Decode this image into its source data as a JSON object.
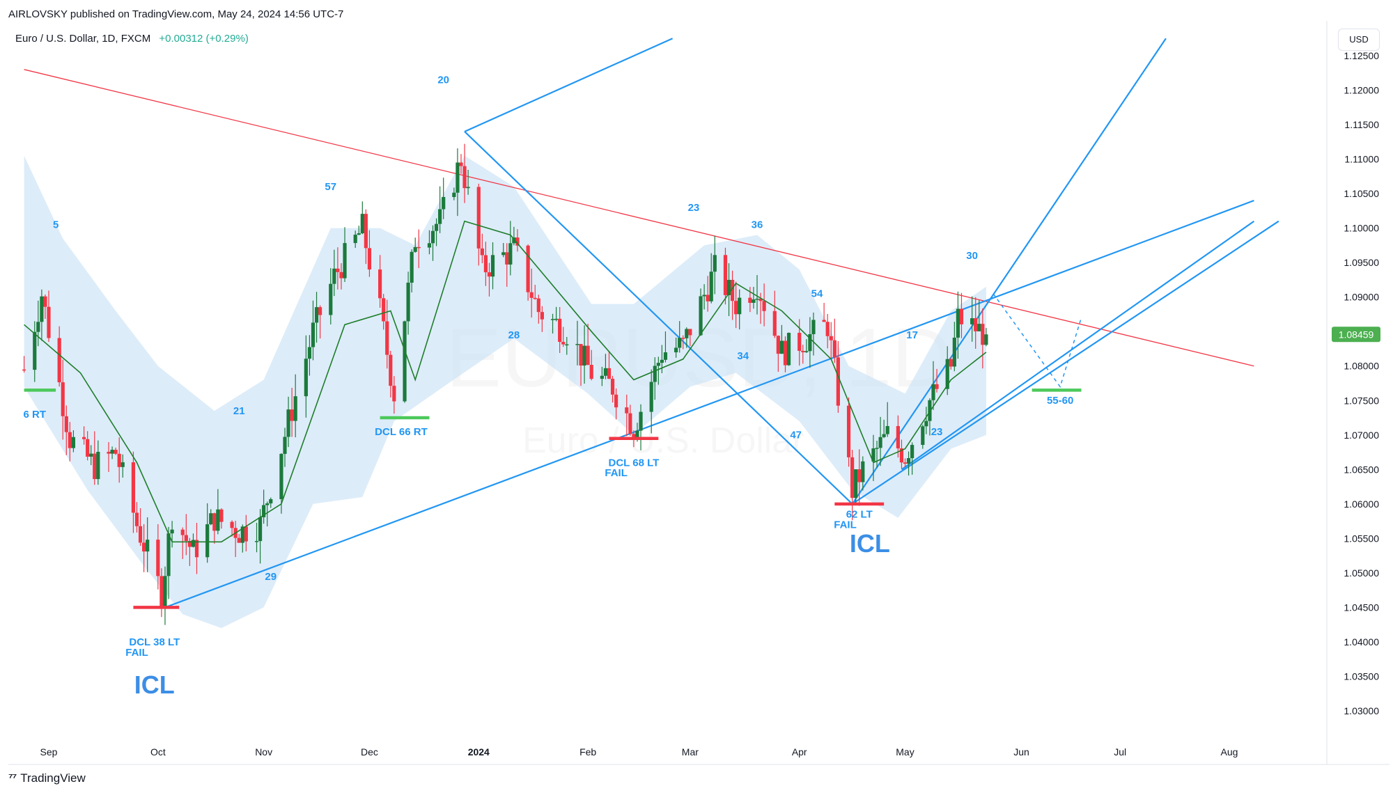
{
  "header": {
    "published_line": "AIRLOVSKY published on TradingView.com, May 24, 2024 14:56 UTC-7",
    "symbol": "Euro / U.S. Dollar, 1D, FXCM",
    "change": "+0.00312 (+0.29%)",
    "currency": "USD"
  },
  "footer": {
    "brand": "TradingView",
    "logo_icon": "tradingview-logo-icon"
  },
  "watermark": {
    "ticker": "EURUSD, 1D",
    "name": "Euro / U.S. Dollar"
  },
  "colors": {
    "up": "#22ab94",
    "up_dark": "#1b7a3c",
    "down": "#f23645",
    "band": "#cfe4f7",
    "ma": "#1e7e2a",
    "blue_line": "#2196f3",
    "red_line": "#f23645",
    "price_tag": "#4caf50"
  },
  "chart_data": {
    "type": "candlestick",
    "series_timeframe": "1D",
    "ylim": [
      1.025,
      1.1275
    ],
    "y_ticks": [
      "1.12500",
      "1.12000",
      "1.11500",
      "1.11000",
      "1.10500",
      "1.10000",
      "1.09500",
      "1.09000",
      "1.08500",
      "1.08000",
      "1.07500",
      "1.07000",
      "1.06500",
      "1.06000",
      "1.05500",
      "1.05000",
      "1.04500",
      "1.04000",
      "1.03500",
      "1.03000"
    ],
    "x_ticks": [
      "Sep",
      "Oct",
      "Nov",
      "Dec",
      "2024",
      "Feb",
      "Mar",
      "Apr",
      "May",
      "Jun",
      "Jul",
      "Aug"
    ],
    "x_tick_dates": [
      "2023-09-01",
      "2023-10-02",
      "2023-11-01",
      "2023-12-01",
      "2024-01-01",
      "2024-02-01",
      "2024-03-01",
      "2024-04-01",
      "2024-05-01",
      "2024-06-03",
      "2024-07-01",
      "2024-08-01"
    ],
    "last_price": "1.08459",
    "close_path": [
      [
        "2023-08-25",
        1.0795
      ],
      [
        "2023-08-30",
        1.0905
      ],
      [
        "2023-09-07",
        1.0695
      ],
      [
        "2023-09-14",
        1.0655
      ],
      [
        "2023-09-20",
        1.0675
      ],
      [
        "2023-09-26",
        1.057
      ],
      [
        "2023-10-03",
        1.047
      ],
      [
        "2023-10-06",
        1.0585
      ],
      [
        "2023-10-12",
        1.053
      ],
      [
        "2023-10-18",
        1.058
      ],
      [
        "2023-10-25",
        1.056
      ],
      [
        "2023-10-31",
        1.057
      ],
      [
        "2023-11-07",
        1.07
      ],
      [
        "2023-11-15",
        1.085
      ],
      [
        "2023-11-21",
        1.093
      ],
      [
        "2023-11-29",
        1.1
      ],
      [
        "2023-12-04",
        1.088
      ],
      [
        "2023-12-08",
        1.076
      ],
      [
        "2023-12-14",
        1.0985
      ],
      [
        "2023-12-21",
        1.101
      ],
      [
        "2023-12-27",
        1.11
      ],
      [
        "2024-01-02",
        1.094
      ],
      [
        "2024-01-11",
        1.097
      ],
      [
        "2024-01-18",
        1.088
      ],
      [
        "2024-01-26",
        1.085
      ],
      [
        "2024-02-02",
        1.079
      ],
      [
        "2024-02-08",
        1.077
      ],
      [
        "2024-02-14",
        1.071
      ],
      [
        "2024-02-22",
        1.082
      ],
      [
        "2024-02-28",
        1.083
      ],
      [
        "2024-03-08",
        1.094
      ],
      [
        "2024-03-14",
        1.089
      ],
      [
        "2024-03-20",
        1.092
      ],
      [
        "2024-03-27",
        1.082
      ],
      [
        "2024-04-03",
        1.084
      ],
      [
        "2024-04-09",
        1.086
      ],
      [
        "2024-04-16",
        1.062
      ],
      [
        "2024-04-19",
        1.065
      ],
      [
        "2024-04-26",
        1.07
      ],
      [
        "2024-05-01",
        1.067
      ],
      [
        "2024-05-08",
        1.075
      ],
      [
        "2024-05-14",
        1.08
      ],
      [
        "2024-05-16",
        1.087
      ],
      [
        "2024-05-21",
        1.0855
      ],
      [
        "2024-05-24",
        1.08459
      ]
    ],
    "ma_path": [
      [
        "2023-08-25",
        1.086
      ],
      [
        "2023-09-10",
        1.079
      ],
      [
        "2023-09-26",
        1.066
      ],
      [
        "2023-10-06",
        1.0545
      ],
      [
        "2023-10-20",
        1.0545
      ],
      [
        "2023-11-06",
        1.06
      ],
      [
        "2023-11-24",
        1.086
      ],
      [
        "2023-12-07",
        1.088
      ],
      [
        "2023-12-14",
        1.078
      ],
      [
        "2023-12-28",
        1.101
      ],
      [
        "2024-01-10",
        1.099
      ],
      [
        "2024-02-02",
        1.085
      ],
      [
        "2024-02-14",
        1.078
      ],
      [
        "2024-02-28",
        1.081
      ],
      [
        "2024-03-14",
        1.092
      ],
      [
        "2024-03-27",
        1.088
      ],
      [
        "2024-04-10",
        1.081
      ],
      [
        "2024-04-22",
        1.066
      ],
      [
        "2024-05-01",
        1.068
      ],
      [
        "2024-05-14",
        1.078
      ],
      [
        "2024-05-24",
        1.082
      ]
    ],
    "band_upper": [
      [
        "2023-08-25",
        1.1105
      ],
      [
        "2023-09-05",
        1.0985
      ],
      [
        "2023-09-20",
        1.088
      ],
      [
        "2023-10-02",
        1.08
      ],
      [
        "2023-10-18",
        1.0735
      ],
      [
        "2023-11-01",
        1.078
      ],
      [
        "2023-11-20",
        1.1
      ],
      [
        "2023-12-04",
        1.1
      ],
      [
        "2023-12-14",
        1.0975
      ],
      [
        "2023-12-28",
        1.1105
      ],
      [
        "2024-01-11",
        1.106
      ],
      [
        "2024-02-02",
        1.089
      ],
      [
        "2024-02-14",
        1.089
      ],
      [
        "2024-03-05",
        1.0975
      ],
      [
        "2024-03-20",
        1.099
      ],
      [
        "2024-04-01",
        1.094
      ],
      [
        "2024-04-15",
        1.08
      ],
      [
        "2024-05-01",
        1.076
      ],
      [
        "2024-05-14",
        1.088
      ],
      [
        "2024-05-24",
        1.0915
      ]
    ],
    "band_lower": [
      [
        "2023-08-25",
        1.077
      ],
      [
        "2023-09-12",
        1.062
      ],
      [
        "2023-09-28",
        1.051
      ],
      [
        "2023-10-09",
        1.044
      ],
      [
        "2023-10-20",
        1.042
      ],
      [
        "2023-11-01",
        1.045
      ],
      [
        "2023-11-15",
        1.06
      ],
      [
        "2023-11-29",
        1.061
      ],
      [
        "2023-12-08",
        1.072
      ],
      [
        "2023-12-22",
        1.077
      ],
      [
        "2024-01-11",
        1.084
      ],
      [
        "2024-02-01",
        1.076
      ],
      [
        "2024-02-14",
        1.07
      ],
      [
        "2024-03-01",
        1.077
      ],
      [
        "2024-03-14",
        1.079
      ],
      [
        "2024-04-01",
        1.072
      ],
      [
        "2024-04-16",
        1.062
      ],
      [
        "2024-04-29",
        1.058
      ],
      [
        "2024-05-14",
        1.068
      ],
      [
        "2024-05-24",
        1.07
      ]
    ],
    "lines": [
      {
        "name": "downtrend-line",
        "style": "red",
        "points": [
          [
            "2023-08-25",
            1.123
          ],
          [
            "2024-08-08",
            1.08
          ]
        ]
      },
      {
        "name": "uptrend-line-lower",
        "style": "blue",
        "points": [
          [
            "2023-10-04",
            1.045
          ],
          [
            "2024-08-08",
            1.104
          ]
        ]
      },
      {
        "name": "pitchfork-handle-up",
        "style": "blue",
        "points": [
          [
            "2023-12-28",
            1.114
          ],
          [
            "2024-02-25",
            1.1275
          ]
        ]
      },
      {
        "name": "pitchfork-down",
        "style": "blue",
        "points": [
          [
            "2023-12-28",
            1.114
          ],
          [
            "2024-04-16",
            1.06
          ]
        ]
      },
      {
        "name": "channel-upper",
        "style": "blue",
        "points": [
          [
            "2024-04-16",
            1.06
          ],
          [
            "2024-07-14",
            1.1275
          ]
        ]
      },
      {
        "name": "channel-lower-upper-start",
        "style": "blue",
        "points": [
          [
            "2024-04-16",
            1.06
          ],
          [
            "2024-08-15",
            1.101
          ]
        ]
      },
      {
        "name": "uptrend-line-2",
        "style": "blue",
        "points": [
          [
            "2024-04-30",
            1.065
          ],
          [
            "2024-08-08",
            1.101
          ]
        ]
      }
    ],
    "projection": [
      [
        "2024-05-26",
        1.0905
      ],
      [
        "2024-06-14",
        1.077
      ],
      [
        "2024-06-20",
        1.087
      ]
    ],
    "levels": [
      {
        "name": "rt-6",
        "color": "green",
        "date_from": "2023-08-25",
        "date_to": "2023-09-03",
        "price": 1.0765
      },
      {
        "name": "dcl-38",
        "color": "red",
        "date_from": "2023-09-25",
        "date_to": "2023-10-08",
        "price": 1.045
      },
      {
        "name": "dcl-66",
        "color": "green",
        "date_from": "2023-12-04",
        "date_to": "2023-12-18",
        "price": 1.0725
      },
      {
        "name": "dcl-68",
        "color": "red",
        "date_from": "2024-02-07",
        "date_to": "2024-02-21",
        "price": 1.0695
      },
      {
        "name": "lt-62",
        "color": "red",
        "date_from": "2024-04-11",
        "date_to": "2024-04-25",
        "price": 1.06
      },
      {
        "name": "target-55-60",
        "color": "green",
        "date_from": "2024-06-06",
        "date_to": "2024-06-20",
        "price": 1.0765
      }
    ],
    "annotations": [
      {
        "text": "5",
        "date": "2023-09-03",
        "price": 1.1,
        "color": "blue",
        "size": "small"
      },
      {
        "text": "6 RT",
        "date": "2023-08-28",
        "price": 1.0725,
        "color": "blue",
        "size": "small"
      },
      {
        "text": "DCL 38 LT",
        "date": "2023-10-01",
        "price": 1.0395,
        "color": "blue",
        "size": "small"
      },
      {
        "text": "FAIL",
        "date": "2023-09-26",
        "price": 1.038,
        "color": "blue",
        "size": "small"
      },
      {
        "text": "ICL",
        "date": "2023-10-01",
        "price": 1.0325,
        "color": "blue",
        "size": "large"
      },
      {
        "text": "21",
        "date": "2023-10-25",
        "price": 1.073,
        "color": "blue",
        "size": "small"
      },
      {
        "text": "29",
        "date": "2023-11-03",
        "price": 1.049,
        "color": "blue",
        "size": "small"
      },
      {
        "text": "57",
        "date": "2023-11-20",
        "price": 1.1055,
        "color": "blue",
        "size": "small"
      },
      {
        "text": "DCL 66 RT",
        "date": "2023-12-10",
        "price": 1.07,
        "color": "blue",
        "size": "small"
      },
      {
        "text": "20",
        "date": "2023-12-22",
        "price": 1.121,
        "color": "blue",
        "size": "small"
      },
      {
        "text": "28",
        "date": "2024-01-11",
        "price": 1.084,
        "color": "blue",
        "size": "small"
      },
      {
        "text": "DCL 68 LT",
        "date": "2024-02-14",
        "price": 1.0655,
        "color": "blue",
        "size": "small"
      },
      {
        "text": "FAIL",
        "date": "2024-02-09",
        "price": 1.064,
        "color": "blue",
        "size": "small"
      },
      {
        "text": "23",
        "date": "2024-03-02",
        "price": 1.1025,
        "color": "blue",
        "size": "small"
      },
      {
        "text": "36",
        "date": "2024-03-20",
        "price": 1.1,
        "color": "blue",
        "size": "small"
      },
      {
        "text": "34",
        "date": "2024-03-16",
        "price": 1.081,
        "color": "blue",
        "size": "small"
      },
      {
        "text": "54",
        "date": "2024-04-06",
        "price": 1.09,
        "color": "blue",
        "size": "small"
      },
      {
        "text": "47",
        "date": "2024-03-31",
        "price": 1.0695,
        "color": "blue",
        "size": "small"
      },
      {
        "text": "62 LT",
        "date": "2024-04-18",
        "price": 1.058,
        "color": "blue",
        "size": "small"
      },
      {
        "text": "FAIL",
        "date": "2024-04-14",
        "price": 1.0565,
        "color": "blue",
        "size": "small"
      },
      {
        "text": "ICL",
        "date": "2024-04-21",
        "price": 1.053,
        "color": "blue",
        "size": "large"
      },
      {
        "text": "17",
        "date": "2024-05-03",
        "price": 1.084,
        "color": "blue",
        "size": "small"
      },
      {
        "text": "23",
        "date": "2024-05-10",
        "price": 1.07,
        "color": "blue",
        "size": "small"
      },
      {
        "text": "30",
        "date": "2024-05-20",
        "price": 1.0955,
        "color": "blue",
        "size": "small"
      },
      {
        "text": "55-60",
        "date": "2024-06-14",
        "price": 1.0745,
        "color": "blue",
        "size": "small"
      }
    ]
  }
}
